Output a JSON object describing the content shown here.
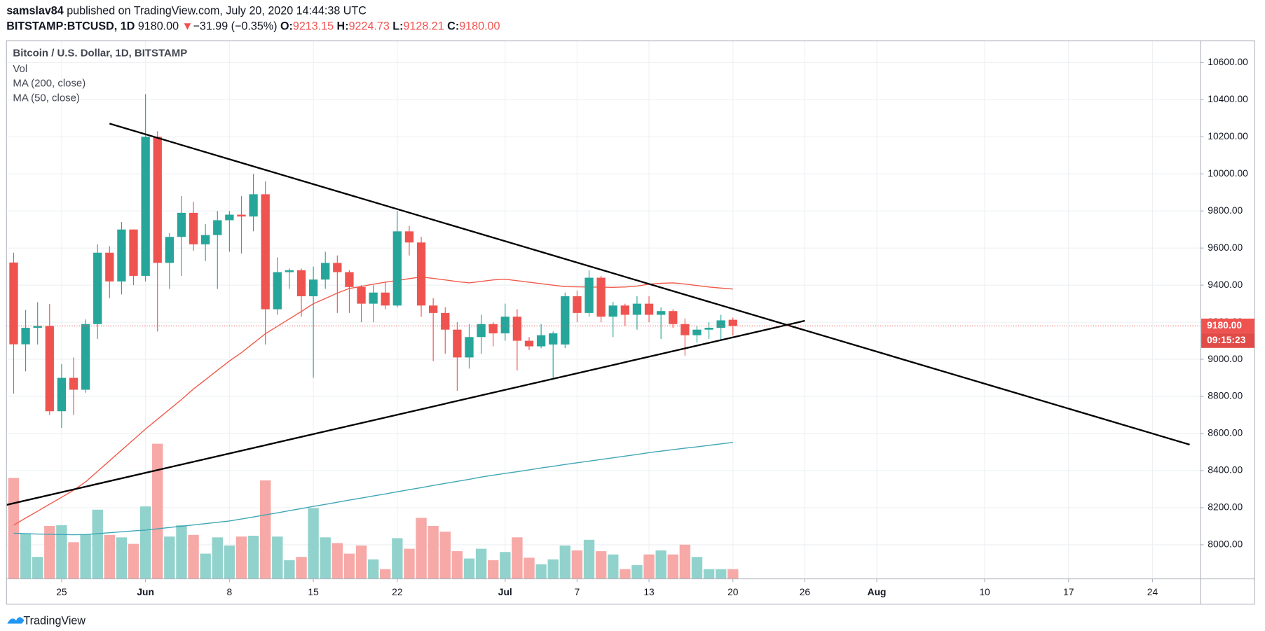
{
  "header": {
    "author": "samslav84",
    "published": "published on TradingView.com, July 20, 2020 14:44:38 UTC",
    "symbol": "BITSTAMP:BTCUSD, 1D",
    "last": "9180.00",
    "arrow": "▼",
    "change": "−31.99 (−0.35%)",
    "o": "O:",
    "h": "H:",
    "l": "L:",
    "c": "C:",
    "close": "9180.00"
  },
  "footer": {
    "brand": "TradingView"
  },
  "chart_data": {
    "type": "candlestick",
    "title": "Bitcoin / U.S. Dollar, 1D, BITSTAMP",
    "up_color": "#26a69a",
    "down_color": "#ef5350",
    "volume_up_color": "#91d3cc",
    "volume_down_color": "#f6a9a7",
    "volume_name": "Vol",
    "open": [
      9522,
      9081,
      9170,
      9180,
      8720,
      8900,
      8836,
      9190,
      9575,
      9420,
      9700,
      9450,
      10200,
      9520,
      9660,
      9790,
      9620,
      9670,
      9750,
      9780,
      9770,
      9890,
      9270,
      9470,
      9480,
      9340,
      9430,
      9520,
      9470,
      9390,
      9300,
      9360,
      9290,
      9690,
      9630,
      9290,
      9250,
      9160,
      9010,
      9120,
      9190,
      9140,
      9230,
      9100,
      9070,
      9080,
      9080,
      9340,
      9250,
      9440,
      9230,
      9290,
      9240,
      9300,
      9240,
      9260,
      9190,
      9130,
      9160,
      9170,
      9213.15
    ],
    "high": [
      9575,
      9266,
      9308,
      9298,
      8975,
      9010,
      9215,
      9620,
      9610,
      9740,
      9700,
      10430,
      10230,
      9680,
      9880,
      9850,
      9730,
      9800,
      9800,
      9880,
      10000,
      9960,
      9550,
      9490,
      9490,
      9500,
      9580,
      9560,
      9480,
      9400,
      9400,
      9420,
      9800,
      9720,
      9660,
      9330,
      9280,
      9200,
      9190,
      9240,
      9200,
      9300,
      9270,
      9120,
      9190,
      9150,
      9360,
      9370,
      9480,
      9450,
      9310,
      9300,
      9340,
      9340,
      9280,
      9270,
      9220,
      9180,
      9200,
      9240,
      9224.73
    ],
    "low": [
      8815,
      8935,
      9080,
      8700,
      8630,
      8700,
      8820,
      9110,
      9330,
      9350,
      9400,
      9420,
      9150,
      9380,
      9450,
      9585,
      9530,
      9380,
      9580,
      9570,
      9690,
      9080,
      9240,
      9380,
      9230,
      8900,
      9380,
      9250,
      9250,
      9200,
      9200,
      9270,
      9280,
      9560,
      9230,
      8990,
      9030,
      8830,
      8950,
      9030,
      9070,
      9100,
      8940,
      9050,
      9060,
      8900,
      9060,
      9200,
      9230,
      9200,
      9120,
      9180,
      9160,
      9200,
      9110,
      9170,
      9020,
      9090,
      9110,
      9100,
      9128.21
    ],
    "close": [
      9081,
      9170,
      9180,
      8720,
      8900,
      8836,
      9190,
      9575,
      9420,
      9700,
      9450,
      10200,
      9520,
      9660,
      9790,
      9620,
      9670,
      9750,
      9780,
      9770,
      9890,
      9270,
      9470,
      9480,
      9340,
      9430,
      9520,
      9470,
      9390,
      9300,
      9360,
      9290,
      9690,
      9630,
      9290,
      9250,
      9160,
      9010,
      9120,
      9190,
      9140,
      9230,
      9100,
      9070,
      9130,
      9140,
      9340,
      9250,
      9440,
      9230,
      9290,
      9240,
      9300,
      9240,
      9260,
      9190,
      9130,
      9160,
      9170,
      9210,
      9180
    ],
    "volume": [
      124,
      55,
      27,
      65,
      66,
      45,
      55,
      85,
      54,
      51,
      43,
      89,
      166,
      52,
      66,
      54,
      31,
      51,
      41,
      52,
      53,
      121,
      52,
      23,
      27,
      87,
      51,
      44,
      31,
      41,
      24,
      12,
      50,
      37,
      75,
      65,
      58,
      34,
      25,
      37,
      23,
      33,
      51,
      26,
      18,
      24,
      41,
      35,
      48,
      34,
      30,
      12,
      17,
      30,
      35,
      30,
      42,
      27,
      12,
      12,
      12
    ],
    "ma": [
      {
        "name": "MA (200, close)",
        "color": "#3fa6b5",
        "values": [
          8062,
          8060,
          8058,
          8057,
          8055,
          8054,
          8055,
          8060,
          8065,
          8070,
          8075,
          8079,
          8086,
          8093,
          8100,
          8107,
          8114,
          8121,
          8128,
          8139,
          8150,
          8161,
          8172,
          8184,
          8195,
          8207,
          8218,
          8229,
          8241,
          8252,
          8263,
          8274,
          8286,
          8297,
          8308,
          8320,
          8331,
          8342,
          8353,
          8365,
          8375,
          8385,
          8394,
          8404,
          8414,
          8423,
          8433,
          8442,
          8451,
          8460,
          8469,
          8478,
          8487,
          8497,
          8505,
          8513,
          8521,
          8528,
          8536,
          8544,
          8552
        ]
      },
      {
        "name": "MA (50, close)",
        "color": "#f15a4b",
        "values": [
          8106,
          8144,
          8181,
          8219,
          8256,
          8294,
          8339,
          8396,
          8453,
          8510,
          8567,
          8624,
          8677,
          8730,
          8783,
          8840,
          8890,
          8941,
          8991,
          9036,
          9087,
          9138,
          9178,
          9218,
          9258,
          9300,
          9328,
          9357,
          9382,
          9393,
          9405,
          9416,
          9425,
          9435,
          9444,
          9436,
          9428,
          9419,
          9412,
          9420,
          9428,
          9432,
          9424,
          9416,
          9408,
          9400,
          9392,
          9391,
          9390,
          9389,
          9388,
          9390,
          9395,
          9405,
          9410,
          9412,
          9406,
          9398,
          9390,
          9384,
          9379
        ]
      }
    ],
    "trendlines": [
      {
        "x": [
          8,
          98.1
        ],
        "y": [
          10271,
          8540
        ]
      },
      {
        "x": [
          -0.6,
          66
        ],
        "y": [
          8215,
          9208
        ]
      }
    ],
    "last_price": {
      "value": 9180,
      "label": "9180.00"
    },
    "countdown": "09:15:23",
    "xlim": [
      -0.6,
      99
    ],
    "xticks": [
      {
        "value": 4,
        "label": "25"
      },
      {
        "value": 11,
        "label": "Jun"
      },
      {
        "value": 18,
        "label": "8"
      },
      {
        "value": 25,
        "label": "15"
      },
      {
        "value": 32,
        "label": "22"
      },
      {
        "value": 41,
        "label": "Jul"
      },
      {
        "value": 47,
        "label": "7"
      },
      {
        "value": 53,
        "label": "13"
      },
      {
        "value": 60,
        "label": "20"
      },
      {
        "value": 66,
        "label": "26"
      },
      {
        "value": 72,
        "label": "Aug"
      },
      {
        "value": 81,
        "label": "10"
      },
      {
        "value": 88,
        "label": "17"
      },
      {
        "value": 95,
        "label": "24"
      }
    ],
    "ylim": [
      7816,
      10718
    ],
    "yticks": [
      {
        "value": 8000,
        "label": "8000.00"
      },
      {
        "value": 8200,
        "label": "8200.00"
      },
      {
        "value": 8400,
        "label": "8400.00"
      },
      {
        "value": 8600,
        "label": "8600.00"
      },
      {
        "value": 8800,
        "label": "8800.00"
      },
      {
        "value": 9000,
        "label": "9000.00"
      },
      {
        "value": 9200,
        "label": "9200.00"
      },
      {
        "value": 9400,
        "label": "9400.00"
      },
      {
        "value": 9600,
        "label": "9600.00"
      },
      {
        "value": 9800,
        "label": "9800.00"
      },
      {
        "value": 10000,
        "label": "10000.00"
      },
      {
        "value": 10200,
        "label": "10200.00"
      },
      {
        "value": 10400,
        "label": "10400.00"
      },
      {
        "value": 10600,
        "label": "10600.00"
      }
    ],
    "grid": true
  }
}
